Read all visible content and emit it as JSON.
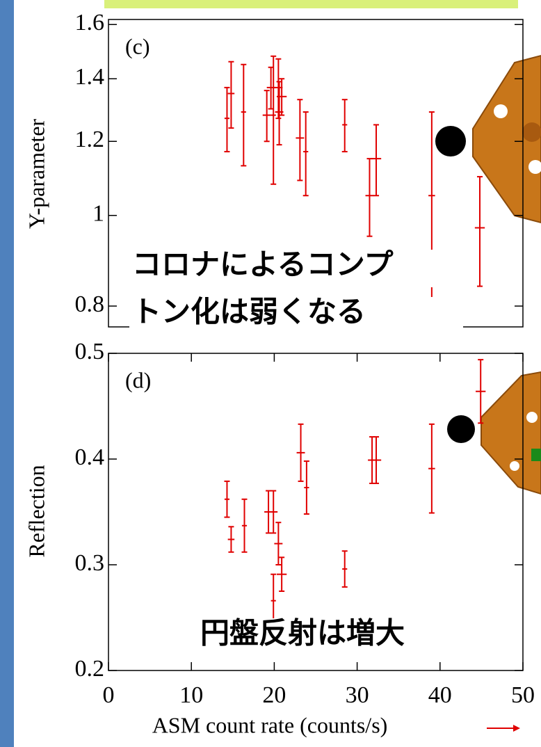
{
  "chart_data": [
    {
      "type": "errorbar",
      "panel_label": "(c)",
      "ylabel": "Y-parameter",
      "log_y": true,
      "annotation": [
        "コロナによるコンプ",
        "トン化は弱くなる"
      ],
      "xlim": [
        0,
        50
      ],
      "ylim": [
        0.76,
        1.62
      ],
      "yticks": [
        1.6,
        1.4,
        1.2,
        1,
        0.8
      ],
      "series": [
        {
          "color": "#e00000",
          "x": [
            14.3,
            14.8,
            16.3,
            19.1,
            19.6,
            19.9,
            20.5,
            20.6,
            20.9,
            23.1,
            23.8,
            28.5,
            31.5,
            32.3,
            39,
            44.8
          ],
          "xerr": [
            0.3,
            0.4,
            0.3,
            0.5,
            0.5,
            0.3,
            0.5,
            0.5,
            0.6,
            0.5,
            0.3,
            0.3,
            0.5,
            0.6,
            0.4,
            0.6
          ],
          "values": [
            1.27,
            1.35,
            1.29,
            1.28,
            1.37,
            1.28,
            1.37,
            1.29,
            1.34,
            1.21,
            1.17,
            1.25,
            1.05,
            1.15,
            1.05,
            0.97
          ],
          "yerr": [
            0.1,
            0.11,
            0.16,
            0.08,
            0.07,
            0.2,
            0.1,
            0.1,
            0.06,
            0.12,
            0.12,
            0.08,
            0.1,
            0.1,
            0.24,
            0.13
          ]
        }
      ]
    },
    {
      "type": "errorbar",
      "panel_label": "(d)",
      "ylabel": "Reflection",
      "xlabel": "ASM count rate (counts/s)",
      "annotation": [
        "円盤反射は増大"
      ],
      "xlim": [
        0,
        50
      ],
      "xticks": [
        0,
        10,
        20,
        30,
        40,
        50
      ],
      "ylim": [
        0.2,
        0.5
      ],
      "yticks": [
        0.5,
        0.4,
        0.3,
        0.2
      ],
      "series": [
        {
          "color": "#e00000",
          "x": [
            14.3,
            14.8,
            16.4,
            19.3,
            19.9,
            19.9,
            20.5,
            20.9,
            23.2,
            23.9,
            28.5,
            31.8,
            32.3,
            39,
            44.9
          ],
          "xerr": [
            0.3,
            0.4,
            0.3,
            0.5,
            0.5,
            0.3,
            0.5,
            0.6,
            0.5,
            0.3,
            0.3,
            0.5,
            0.6,
            0.4,
            0.6
          ],
          "values": [
            0.362,
            0.324,
            0.337,
            0.35,
            0.35,
            0.266,
            0.32,
            0.291,
            0.406,
            0.373,
            0.296,
            0.399,
            0.399,
            0.391,
            0.464
          ],
          "yerr": [
            0.017,
            0.012,
            0.025,
            0.02,
            0.02,
            0.025,
            0.02,
            0.016,
            0.027,
            0.025,
            0.017,
            0.022,
            0.022,
            0.042,
            0.03
          ]
        }
      ]
    }
  ]
}
